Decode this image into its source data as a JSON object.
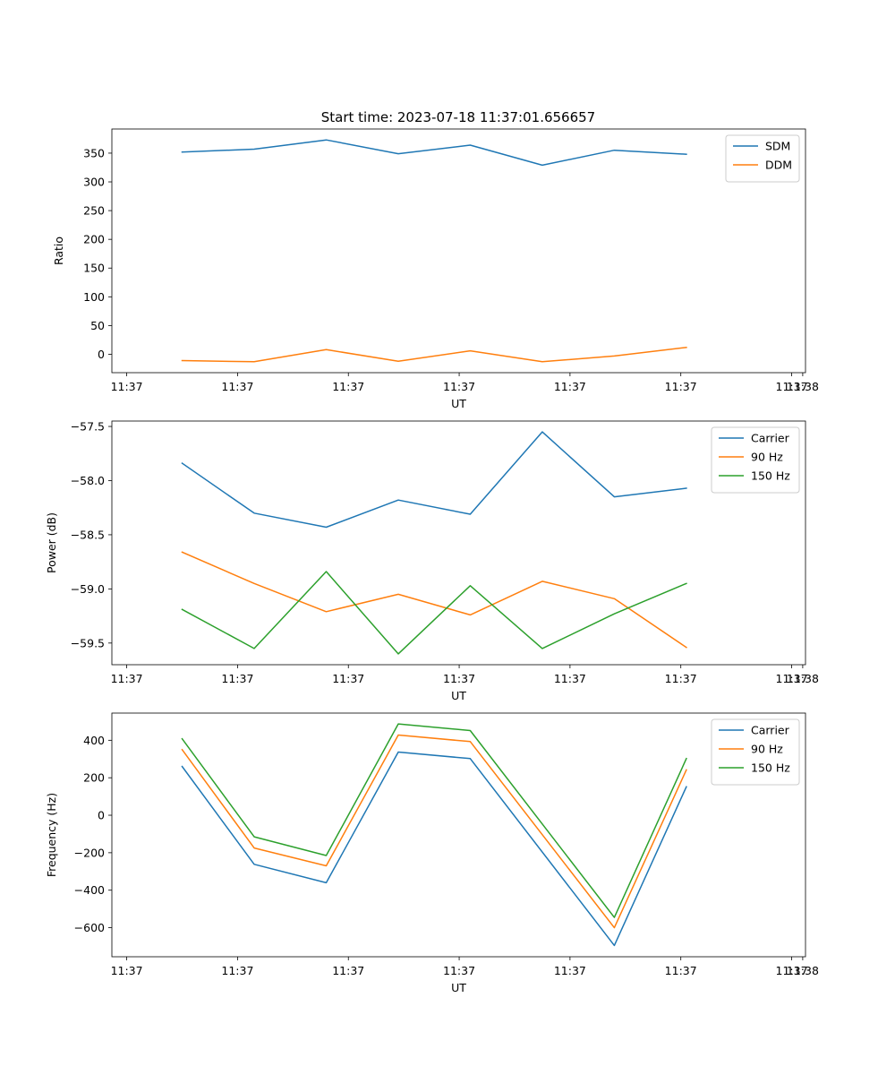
{
  "figure": {
    "title": "Start time: 2023-07-18 11:37:01.656657"
  },
  "chart_data": [
    {
      "type": "line",
      "title": "Start time: 2023-07-18 11:37:01.656657",
      "xlabel": "UT",
      "ylabel": "Ratio",
      "x_ticks": [
        "11:37",
        "11:37",
        "11:37",
        "11:37",
        "11:37",
        "11:37",
        "11:37"
      ],
      "x_tick_last": "11:38",
      "x_tick_values": [
        0,
        1,
        2,
        3,
        4,
        5,
        6
      ],
      "x_tick_last_value": 6.1,
      "xlim": [
        -0.134,
        6.125
      ],
      "ylim": [
        -32,
        392
      ],
      "y_ticks": [
        0,
        50,
        100,
        150,
        200,
        250,
        300,
        350
      ],
      "y_tick_labels": [
        "0",
        "50",
        "100",
        "150",
        "200",
        "250",
        "300",
        "350"
      ],
      "legend_position": "top-right",
      "x": [
        0.5,
        1.15,
        1.8,
        2.45,
        3.1,
        3.75,
        4.4,
        5.05
      ],
      "series": [
        {
          "name": "SDM",
          "color": "#1f77b4",
          "values": [
            352,
            357,
            373,
            349,
            364,
            329,
            355,
            348
          ]
        },
        {
          "name": "DDM",
          "color": "#ff7f0e",
          "values": [
            -11,
            -13,
            8,
            -12,
            6,
            -13,
            -3,
            12
          ]
        }
      ]
    },
    {
      "type": "line",
      "title": "",
      "xlabel": "UT",
      "ylabel": "Power (dB)",
      "x_ticks": [
        "11:37",
        "11:37",
        "11:37",
        "11:37",
        "11:37",
        "11:37",
        "11:37"
      ],
      "x_tick_last": "11:38",
      "x_tick_values": [
        0,
        1,
        2,
        3,
        4,
        5,
        6
      ],
      "x_tick_last_value": 6.1,
      "xlim": [
        -0.134,
        6.125
      ],
      "ylim": [
        -59.7,
        -57.45
      ],
      "y_ticks": [
        -59.5,
        -59.0,
        -58.5,
        -58.0,
        -57.5
      ],
      "y_tick_labels": [
        "−59.5",
        "−59.0",
        "−58.5",
        "−58.0",
        "−57.5"
      ],
      "legend_position": "top-right",
      "x": [
        0.5,
        1.15,
        1.8,
        2.45,
        3.1,
        3.75,
        4.4,
        5.05
      ],
      "series": [
        {
          "name": "Carrier",
          "color": "#1f77b4",
          "values": [
            -57.84,
            -58.3,
            -58.43,
            -58.18,
            -58.31,
            -57.55,
            -58.15,
            -58.07
          ]
        },
        {
          "name": "90 Hz",
          "color": "#ff7f0e",
          "values": [
            -58.66,
            -58.95,
            -59.21,
            -59.05,
            -59.24,
            -58.93,
            -59.09,
            -59.54
          ]
        },
        {
          "name": "150 Hz",
          "color": "#2ca02c",
          "values": [
            -59.19,
            -59.55,
            -58.84,
            -59.6,
            -58.97,
            -59.55,
            -59.23,
            -58.95
          ]
        }
      ]
    },
    {
      "type": "line",
      "title": "",
      "xlabel": "UT",
      "ylabel": "Frequency (Hz)",
      "x_ticks": [
        "11:37",
        "11:37",
        "11:37",
        "11:37",
        "11:37",
        "11:37",
        "11:37"
      ],
      "x_tick_last": "11:38",
      "x_tick_values": [
        0,
        1,
        2,
        3,
        4,
        5,
        6
      ],
      "x_tick_last_value": 6.1,
      "xlim": [
        -0.134,
        6.125
      ],
      "ylim": [
        -755,
        545
      ],
      "y_ticks": [
        -600,
        -400,
        -200,
        0,
        200,
        400
      ],
      "y_tick_labels": [
        "−600",
        "−400",
        "−200",
        "0",
        "200",
        "400"
      ],
      "legend_position": "top-right",
      "x": [
        0.5,
        1.15,
        1.8,
        2.45,
        3.1,
        3.75,
        4.4,
        5.05
      ],
      "series": [
        {
          "name": "Carrier",
          "color": "#1f77b4",
          "values": [
            260,
            -262,
            -360,
            337,
            302,
            null,
            -695,
            152
          ]
        },
        {
          "name": "90 Hz",
          "color": "#ff7f0e",
          "values": [
            350,
            -175,
            -270,
            428,
            393,
            null,
            -600,
            242
          ]
        },
        {
          "name": "150 Hz",
          "color": "#2ca02c",
          "values": [
            408,
            -115,
            -215,
            487,
            452,
            null,
            -545,
            302
          ]
        }
      ]
    }
  ]
}
